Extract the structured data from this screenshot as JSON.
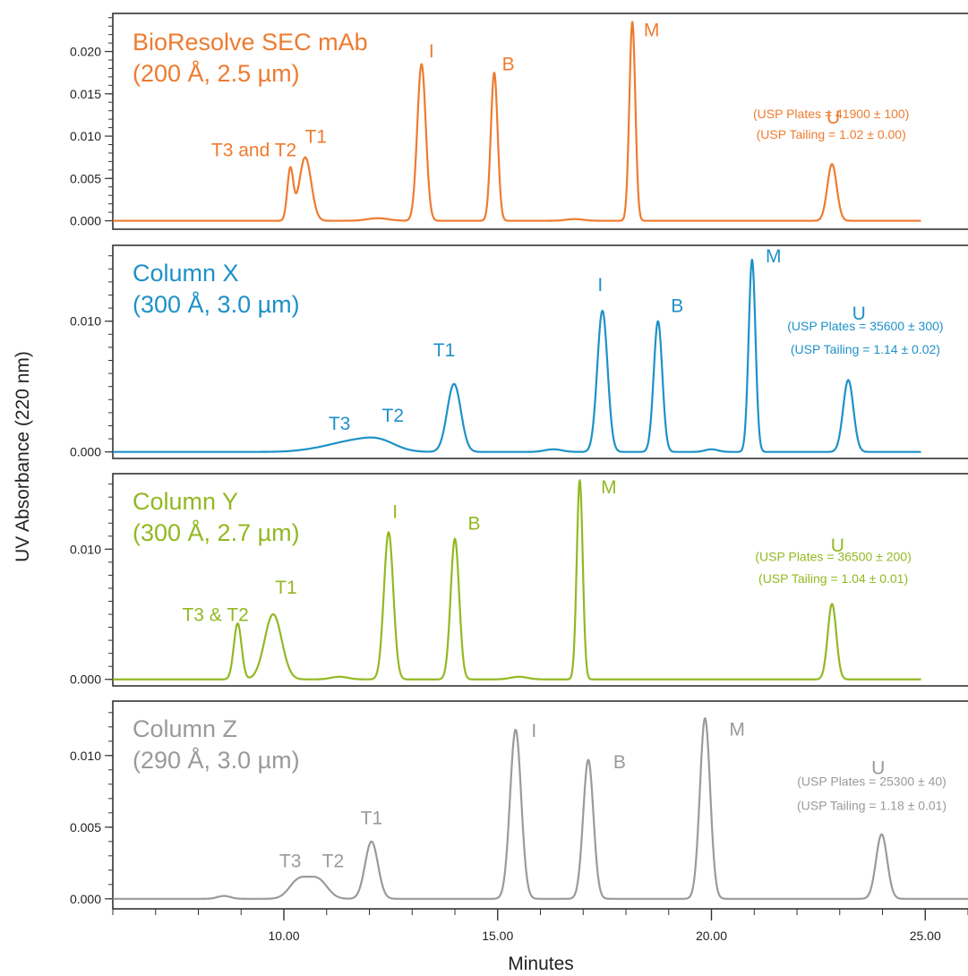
{
  "chart_data": {
    "type": "line",
    "xlabel": "Minutes",
    "ylabel": "UV Absorbance (220 nm)",
    "xlim": [
      6,
      26
    ],
    "x_ticks": [
      "10.00",
      "15.00",
      "20.00",
      "25.00"
    ],
    "x_tick_values": [
      10,
      15,
      20,
      25
    ],
    "panels": [
      {
        "id": "biorsolve",
        "title_line1": "BioResolve SEC mAb",
        "title_line2": "(200 Å, 2.5 µm)",
        "color": "#EE7B2F",
        "ylim": [
          -0.001,
          0.0245
        ],
        "y_ticks": [
          "0.000",
          "0.005",
          "0.010",
          "0.015",
          "0.020"
        ],
        "y_tick_values": [
          0,
          0.005,
          0.01,
          0.015,
          0.02
        ],
        "y_minor_step": 0.001,
        "trace_range": [
          6.0,
          24.9
        ],
        "peaks": [
          {
            "rt": 10.15,
            "height": 0.006,
            "width": 0.07
          },
          {
            "rt": 10.5,
            "height": 0.0075,
            "width": 0.14
          },
          {
            "rt": 12.2,
            "height": 0.0003,
            "width": 0.25
          },
          {
            "rt": 13.22,
            "height": 0.0185,
            "width": 0.1
          },
          {
            "rt": 14.92,
            "height": 0.0175,
            "width": 0.08
          },
          {
            "rt": 16.8,
            "height": 0.0002,
            "width": 0.2
          },
          {
            "rt": 18.15,
            "height": 0.0235,
            "width": 0.07
          },
          {
            "rt": 22.82,
            "height": 0.0067,
            "width": 0.11
          }
        ],
        "peak_labels": [
          {
            "text": "T3 and T2",
            "x": 9.3,
            "y": 0.0076
          },
          {
            "text": "T1",
            "x": 10.75,
            "y": 0.0092
          },
          {
            "text": "I",
            "x": 13.45,
            "y": 0.0193
          },
          {
            "text": "B",
            "x": 15.25,
            "y": 0.0178
          },
          {
            "text": "M",
            "x": 18.6,
            "y": 0.0218
          },
          {
            "text": "U",
            "x": 22.85,
            "y": 0.0115
          }
        ],
        "usp_plates": "(USP Plates = 41900 ± 100)",
        "usp_tailing": "(USP Tailing = 1.02 ± 0.00)",
        "usp_x": 22.8,
        "usp_y1": 0.0121,
        "usp_y2": 0.0097
      },
      {
        "id": "column-x",
        "title_line1": "Column X",
        "title_line2": "(300 Å, 3.0 µm)",
        "color": "#1E91C8",
        "ylim": [
          -0.0005,
          0.0158
        ],
        "y_ticks": [
          "0.000",
          "0.010"
        ],
        "y_tick_values": [
          0,
          0.01
        ],
        "y_minor_step": 0.001,
        "trace_range": [
          6.0,
          24.9
        ],
        "peaks": [
          {
            "rt": 11.0,
            "height": 0.0003,
            "width": 0.5
          },
          {
            "rt": 11.55,
            "height": 0.0005,
            "width": 0.4
          },
          {
            "rt": 12.2,
            "height": 0.0009,
            "width": 0.4
          },
          {
            "rt": 13.98,
            "height": 0.0052,
            "width": 0.16
          },
          {
            "rt": 16.3,
            "height": 0.0002,
            "width": 0.2
          },
          {
            "rt": 17.45,
            "height": 0.0108,
            "width": 0.12
          },
          {
            "rt": 18.75,
            "height": 0.01,
            "width": 0.1
          },
          {
            "rt": 20.0,
            "height": 0.0002,
            "width": 0.15
          },
          {
            "rt": 20.95,
            "height": 0.0147,
            "width": 0.08
          },
          {
            "rt": 23.2,
            "height": 0.0055,
            "width": 0.12
          }
        ],
        "peak_labels": [
          {
            "text": "T3",
            "x": 11.3,
            "y": 0.0017
          },
          {
            "text": "T2",
            "x": 12.55,
            "y": 0.0023
          },
          {
            "text": "T1",
            "x": 13.75,
            "y": 0.0073
          },
          {
            "text": "I",
            "x": 17.4,
            "y": 0.0123
          },
          {
            "text": "B",
            "x": 19.2,
            "y": 0.0107
          },
          {
            "text": "M",
            "x": 21.45,
            "y": 0.0145
          },
          {
            "text": "U",
            "x": 23.45,
            "y": 0.0101
          }
        ],
        "usp_plates": "(USP Plates = 35600 ± 300)",
        "usp_tailing": "(USP Tailing = 1.14 ± 0.02)",
        "usp_x": 23.6,
        "usp_y1": 0.0093,
        "usp_y2": 0.0075
      },
      {
        "id": "column-y",
        "title_line1": "Column Y",
        "title_line2": "(300 Å, 2.7 µm)",
        "color": "#93B822",
        "ylim": [
          -0.0005,
          0.0158
        ],
        "y_ticks": [
          "0.000",
          "0.010"
        ],
        "y_tick_values": [
          0,
          0.01
        ],
        "y_minor_step": 0.001,
        "trace_range": [
          6.0,
          24.9
        ],
        "peaks": [
          {
            "rt": 8.92,
            "height": 0.0043,
            "width": 0.09
          },
          {
            "rt": 9.75,
            "height": 0.005,
            "width": 0.2
          },
          {
            "rt": 11.3,
            "height": 0.0002,
            "width": 0.2
          },
          {
            "rt": 12.45,
            "height": 0.0113,
            "width": 0.11
          },
          {
            "rt": 14.0,
            "height": 0.0108,
            "width": 0.1
          },
          {
            "rt": 15.5,
            "height": 0.0002,
            "width": 0.2
          },
          {
            "rt": 16.92,
            "height": 0.0153,
            "width": 0.07
          },
          {
            "rt": 22.82,
            "height": 0.0058,
            "width": 0.1
          }
        ],
        "peak_labels": [
          {
            "text": "T3 & T2",
            "x": 8.4,
            "y": 0.0045
          },
          {
            "text": "T1",
            "x": 10.05,
            "y": 0.0066
          },
          {
            "text": "I",
            "x": 12.6,
            "y": 0.0124
          },
          {
            "text": "B",
            "x": 14.45,
            "y": 0.0115
          },
          {
            "text": "M",
            "x": 17.6,
            "y": 0.0143
          },
          {
            "text": "U",
            "x": 22.95,
            "y": 0.0098
          }
        ],
        "usp_plates": "(USP Plates = 36500 ± 200)",
        "usp_tailing": "(USP Tailing = 1.04 ± 0.01)",
        "usp_x": 22.85,
        "usp_y1": 0.0091,
        "usp_y2": 0.0074
      },
      {
        "id": "column-z",
        "title_line1": "Column Z",
        "title_line2": "(290 Å, 3.0 µm)",
        "color": "#9A9A9A",
        "ylim": [
          -0.0007,
          0.0138
        ],
        "y_ticks": [
          "0.000",
          "0.005",
          "0.010"
        ],
        "y_tick_values": [
          0,
          0.005,
          0.01
        ],
        "y_minor_step": 0.001,
        "trace_range": [
          6.0,
          26.0
        ],
        "peaks": [
          {
            "rt": 8.6,
            "height": 0.0002,
            "width": 0.15
          },
          {
            "rt": 10.35,
            "height": 0.0013,
            "width": 0.22
          },
          {
            "rt": 10.8,
            "height": 0.0013,
            "width": 0.22
          },
          {
            "rt": 12.05,
            "height": 0.004,
            "width": 0.15
          },
          {
            "rt": 15.42,
            "height": 0.0118,
            "width": 0.13
          },
          {
            "rt": 17.12,
            "height": 0.0097,
            "width": 0.12
          },
          {
            "rt": 19.85,
            "height": 0.0126,
            "width": 0.12
          },
          {
            "rt": 23.98,
            "height": 0.0045,
            "width": 0.13
          }
        ],
        "peak_labels": [
          {
            "text": "T3",
            "x": 10.15,
            "y": 0.0022
          },
          {
            "text": "T2",
            "x": 11.15,
            "y": 0.0022
          },
          {
            "text": "T1",
            "x": 12.05,
            "y": 0.0052
          },
          {
            "text": "I",
            "x": 15.85,
            "y": 0.0113
          },
          {
            "text": "B",
            "x": 17.85,
            "y": 0.0091
          },
          {
            "text": "M",
            "x": 20.6,
            "y": 0.0114
          },
          {
            "text": "U",
            "x": 23.9,
            "y": 0.0087
          }
        ],
        "usp_plates": "(USP Plates =  25300 ± 40)",
        "usp_tailing": "(USP Tailing = 1.18 ± 0.01)",
        "usp_x": 23.75,
        "usp_y1": 0.0079,
        "usp_y2": 0.0062
      }
    ]
  }
}
